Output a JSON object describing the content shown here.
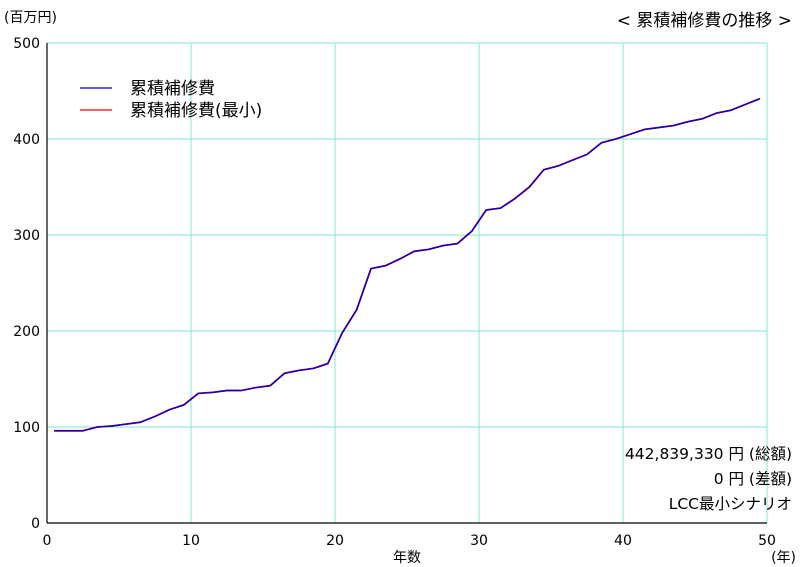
{
  "chart_data": {
    "type": "line",
    "title": "< 累積補修費の推移 >",
    "ylabel": "(百万円)",
    "xlabel": "年数",
    "x_unit": "(年)",
    "xlim": [
      0,
      50
    ],
    "ylim": [
      0,
      500
    ],
    "xticks": [
      0,
      10,
      20,
      30,
      40,
      50
    ],
    "yticks": [
      0,
      100,
      200,
      300,
      400,
      500
    ],
    "grid": true,
    "legend_position": "top-left",
    "x": [
      0.5,
      1.5,
      2.5,
      3.5,
      4.5,
      5.5,
      6.5,
      7.5,
      8.5,
      9.5,
      10.5,
      11.5,
      12.5,
      13.5,
      14.5,
      15.5,
      16.5,
      17.5,
      18.5,
      19.5,
      20.5,
      21.5,
      22.5,
      23.5,
      24.5,
      25.5,
      26.5,
      27.5,
      28.5,
      29.5,
      30.5,
      31.5,
      32.5,
      33.5,
      34.5,
      35.5,
      36.5,
      37.5,
      38.5,
      39.5,
      40.5,
      41.5,
      42.5,
      43.5,
      44.5,
      45.5,
      46.5,
      47.5,
      48.5,
      49.5
    ],
    "series": [
      {
        "name": "累積補修費",
        "color": "#0000cc",
        "values": [
          96,
          96,
          96,
          100,
          101,
          103,
          105,
          111,
          118,
          123,
          135,
          136,
          138,
          138,
          141,
          143,
          156,
          159,
          161,
          166,
          198,
          222,
          265,
          268,
          275,
          283,
          285,
          289,
          291,
          304,
          326,
          328,
          338,
          350,
          368,
          372,
          378,
          384,
          396,
          400,
          405,
          410,
          412,
          414,
          418,
          421,
          427,
          430,
          436,
          442
        ]
      },
      {
        "name": "累積補修費(最小)",
        "color": "#ff0000",
        "values": [
          96,
          96,
          96,
          100,
          101,
          103,
          105,
          111,
          118,
          123,
          135,
          136,
          138,
          138,
          141,
          143,
          156,
          159,
          161,
          166,
          198,
          222,
          265,
          268,
          275,
          283,
          285,
          289,
          291,
          304,
          326,
          328,
          338,
          350,
          368,
          372,
          378,
          384,
          396,
          400,
          405,
          410,
          412,
          414,
          418,
          421,
          427,
          430,
          436,
          442
        ]
      }
    ],
    "summary": {
      "total": "442,839,330 円 (総額)",
      "difference": "0 円 (差額)",
      "scenario": "LCC最小シナリオ"
    }
  }
}
